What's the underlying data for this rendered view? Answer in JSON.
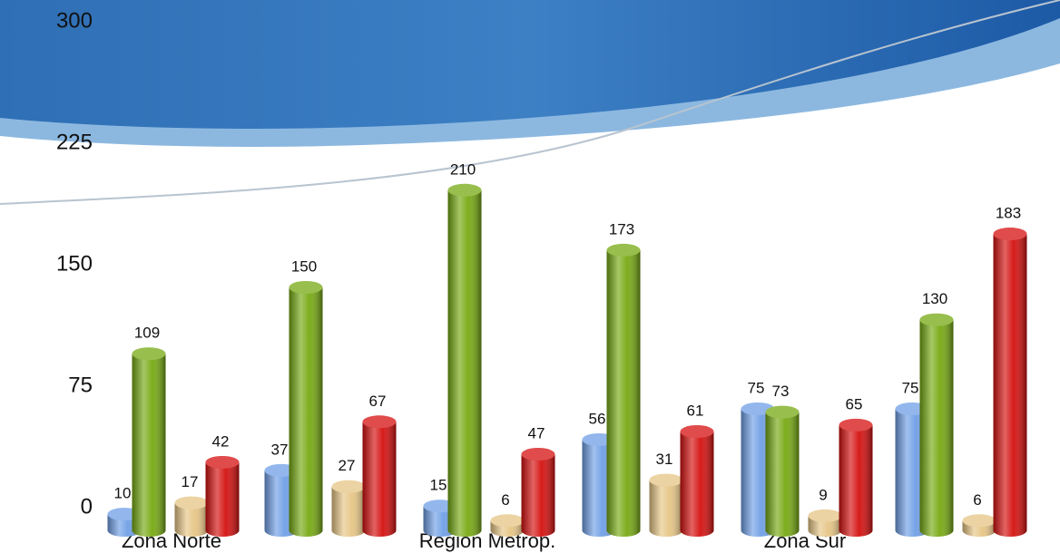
{
  "chart_data": {
    "type": "bar3d",
    "categories": [
      "Zona Norte",
      null,
      "Región Metrop.",
      null,
      "Zona Sur",
      null
    ],
    "series": [
      {
        "color": "#6f9fe6",
        "values": [
          10,
          37,
          15,
          56,
          75,
          75
        ]
      },
      {
        "color": "#76a912",
        "values": [
          109,
          150,
          210,
          173,
          73,
          130
        ]
      },
      {
        "color": "#e6c585",
        "values": [
          17,
          27,
          6,
          31,
          9,
          6
        ]
      },
      {
        "color": "#d4100f",
        "values": [
          42,
          67,
          47,
          61,
          65,
          183
        ]
      }
    ],
    "ylim": [
      0,
      300
    ],
    "yticks": [
      0,
      75,
      150,
      225,
      300
    ]
  }
}
